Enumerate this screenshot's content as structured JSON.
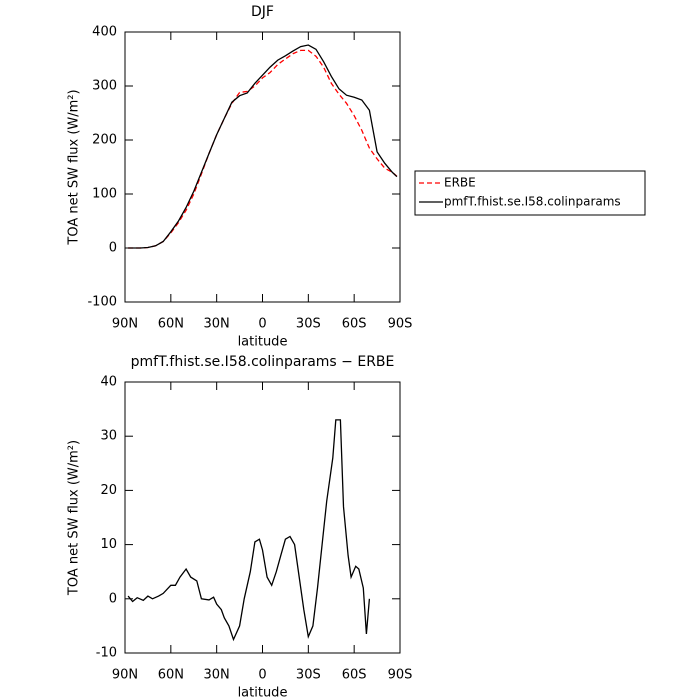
{
  "chart_data": [
    {
      "type": "line",
      "title": "DJF",
      "xlabel": "latitude",
      "ylabel": "TOA net SW flux (W/m²)",
      "x": [
        88,
        85,
        80,
        75,
        70,
        65,
        60,
        55,
        50,
        45,
        40,
        35,
        30,
        25,
        20,
        15,
        10,
        5,
        0,
        -5,
        -10,
        -15,
        -20,
        -25,
        -30,
        -35,
        -40,
        -45,
        -50,
        -55,
        -60,
        -65,
        -70,
        -75,
        -80,
        -85,
        -88
      ],
      "series": [
        {
          "name": "ERBE",
          "color": "#ff0000",
          "dash": true,
          "values": [
            0,
            0,
            0,
            1,
            4,
            12,
            28,
            47,
            70,
            100,
            137,
            175,
            210,
            240,
            268,
            288,
            290,
            300,
            315,
            325,
            340,
            350,
            360,
            366,
            366,
            355,
            335,
            305,
            285,
            268,
            245,
            218,
            185,
            165,
            148,
            140,
            133
          ]
        },
        {
          "name": "pmfT.fhist.se.I58.colinparams",
          "color": "#000000",
          "dash": false,
          "values": [
            0,
            0,
            0,
            1,
            4,
            12,
            30,
            50,
            75,
            105,
            140,
            175,
            210,
            240,
            270,
            282,
            287,
            305,
            320,
            335,
            348,
            356,
            365,
            373,
            376,
            368,
            345,
            318,
            295,
            283,
            279,
            274,
            255,
            178,
            157,
            140,
            132
          ]
        }
      ],
      "xlim": [
        90,
        -90
      ],
      "xticks": [
        {
          "value": 90,
          "label": "90N"
        },
        {
          "value": 60,
          "label": "60N"
        },
        {
          "value": 30,
          "label": "30N"
        },
        0,
        {
          "value": -30,
          "label": "30S"
        },
        {
          "value": -60,
          "label": "60S"
        },
        {
          "value": -90,
          "label": "90S"
        }
      ],
      "ylim": [
        -100,
        400
      ],
      "yticks": [
        -100,
        0,
        100,
        200,
        300,
        400
      ],
      "legend": "right"
    },
    {
      "type": "line",
      "title": "pmfT.fhist.se.I58.colinparams − ERBE",
      "xlabel": "latitude",
      "ylabel": "TOA net SW flux (W/m²)",
      "x": [
        88,
        85,
        82,
        78,
        75,
        72,
        68,
        65,
        60,
        57,
        54,
        50,
        47,
        43,
        40,
        35,
        32,
        30,
        27,
        25,
        22,
        19,
        15,
        12,
        8,
        5,
        2,
        0,
        -3,
        -6,
        -9,
        -12,
        -15,
        -18,
        -21,
        -24,
        -27,
        -30,
        -33,
        -36,
        -39,
        -42,
        -46,
        -48,
        -51,
        -53,
        -56,
        -58,
        -61,
        -63,
        -66,
        -68,
        -70
      ],
      "series": [
        {
          "color": "#000000",
          "dash": false,
          "values": [
            0.5,
            -0.5,
            0.2,
            -0.3,
            0.5,
            0,
            0.5,
            1,
            2.5,
            2.5,
            4,
            5.5,
            4,
            3.3,
            0,
            -0.2,
            0.3,
            -1,
            -2,
            -3.5,
            -5,
            -7.5,
            -5,
            0,
            5,
            10.5,
            11,
            9,
            4,
            2.5,
            5,
            8,
            11,
            11.5,
            10,
            4,
            -2,
            -7,
            -5,
            2,
            10,
            18,
            26,
            33,
            33,
            17,
            8,
            4,
            6,
            5.5,
            2,
            -6.5,
            0
          ]
        }
      ],
      "xlim": [
        90,
        -90
      ],
      "xticks": [
        {
          "value": 90,
          "label": "90N"
        },
        {
          "value": 60,
          "label": "60N"
        },
        {
          "value": 30,
          "label": "30N"
        },
        0,
        {
          "value": -30,
          "label": "30S"
        },
        {
          "value": -60,
          "label": "60S"
        },
        {
          "value": -90,
          "label": "90S"
        }
      ],
      "ylim": [
        -10,
        40
      ],
      "yticks": [
        -10,
        0,
        10,
        20,
        30,
        40
      ]
    }
  ]
}
